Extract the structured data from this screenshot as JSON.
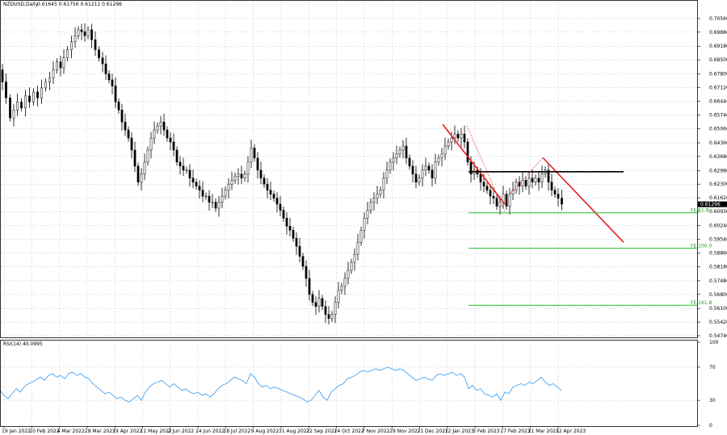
{
  "header": {
    "symbol_text": "NZDUSD,Daily",
    "ohlc_text": "0.61645 0.61756 0.61211 0.61296"
  },
  "chart_data": [
    {
      "type": "candlestick",
      "price_scale": {
        "min": 0.5474,
        "max": 0.7092,
        "ticks": [
          0.7056,
          0.6988,
          0.6918,
          0.685,
          0.678,
          0.6712,
          0.6644,
          0.6574,
          0.6506,
          0.6436,
          0.6368,
          0.6298,
          0.623,
          0.6162,
          0.6093,
          0.6024,
          0.5954,
          0.5886,
          0.5818,
          0.5748,
          0.568,
          0.561,
          0.5542,
          0.5474
        ],
        "tick_labels": [
          "0.70560",
          "0.69880",
          "0.69180",
          "0.68500",
          "0.67800",
          "0.67120",
          "0.66440",
          "0.65740",
          "0.65060",
          "0.64360",
          "0.63680",
          "0.62980",
          "0.62300",
          "0.61620",
          "0.60930",
          "0.60240",
          "0.59540",
          "0.58860",
          "0.58180",
          "0.57480",
          "0.56800",
          "0.56100",
          "0.55420",
          "0.54740"
        ]
      },
      "current_price": {
        "value": 0.61296,
        "label": "0.61296"
      },
      "date_labels": [
        "19 Jan 2022",
        "10 Feb 2022",
        "4 Mar 2022",
        "28 Mar 2022",
        "19 Apr 2022",
        "11 May 2022",
        "2 Jun 2022",
        "24 Jun 2022",
        "18 Jul 2022",
        "9 Aug 2022",
        "31 Aug 2022",
        "22 Sep 2022",
        "14 Oct 2022",
        "7 Nov 2022",
        "29 Nov 2022",
        "21 Dec 2022",
        "12 Jan 2023",
        "3 Feb 2023",
        "27 Feb 2023",
        "21 Mar 2023",
        "12 Apr 2023"
      ],
      "price_path": [
        [
          0,
          0.68
        ],
        [
          4,
          0.674
        ],
        [
          9,
          0.666
        ],
        [
          14,
          0.656
        ],
        [
          18,
          0.66
        ],
        [
          23,
          0.664
        ],
        [
          28,
          0.661
        ],
        [
          33,
          0.667
        ],
        [
          38,
          0.664
        ],
        [
          43,
          0.669
        ],
        [
          48,
          0.666
        ],
        [
          53,
          0.671
        ],
        [
          58,
          0.674
        ],
        [
          63,
          0.676
        ],
        [
          67,
          0.68
        ],
        [
          72,
          0.684
        ],
        [
          76,
          0.681
        ],
        [
          80,
          0.686
        ],
        [
          85,
          0.69
        ],
        [
          90,
          0.694
        ],
        [
          94,
          0.697
        ],
        [
          98,
          0.7
        ],
        [
          102,
          0.699
        ],
        [
          106,
          0.697
        ],
        [
          110,
          0.7
        ],
        [
          115,
          0.695
        ],
        [
          119,
          0.69
        ],
        [
          124,
          0.686
        ],
        [
          128,
          0.683
        ],
        [
          132,
          0.678
        ],
        [
          136,
          0.675
        ],
        [
          140,
          0.672
        ],
        [
          144,
          0.664
        ],
        [
          148,
          0.66
        ],
        [
          152,
          0.654
        ],
        [
          156,
          0.65
        ],
        [
          160,
          0.646
        ],
        [
          164,
          0.64
        ],
        [
          168,
          0.632
        ],
        [
          172,
          0.624
        ],
        [
          176,
          0.628
        ],
        [
          180,
          0.634
        ],
        [
          184,
          0.64
        ],
        [
          188,
          0.646
        ],
        [
          192,
          0.65
        ],
        [
          196,
          0.652
        ],
        [
          200,
          0.654
        ],
        [
          204,
          0.65
        ],
        [
          208,
          0.646
        ],
        [
          212,
          0.644
        ],
        [
          216,
          0.64
        ],
        [
          220,
          0.634
        ],
        [
          224,
          0.632
        ],
        [
          228,
          0.63
        ],
        [
          232,
          0.63
        ],
        [
          236,
          0.626
        ],
        [
          240,
          0.624
        ],
        [
          244,
          0.622
        ],
        [
          248,
          0.62
        ],
        [
          252,
          0.617
        ],
        [
          256,
          0.617
        ],
        [
          260,
          0.614
        ],
        [
          264,
          0.614
        ],
        [
          268,
          0.611
        ],
        [
          272,
          0.614
        ],
        [
          276,
          0.617
        ],
        [
          280,
          0.62
        ],
        [
          284,
          0.623
        ],
        [
          288,
          0.625
        ],
        [
          292,
          0.627
        ],
        [
          296,
          0.628
        ],
        [
          300,
          0.626
        ],
        [
          304,
          0.628
        ],
        [
          308,
          0.634
        ],
        [
          312,
          0.641
        ],
        [
          316,
          0.636
        ],
        [
          320,
          0.63
        ],
        [
          324,
          0.626
        ],
        [
          328,
          0.623
        ],
        [
          332,
          0.62
        ],
        [
          336,
          0.618
        ],
        [
          340,
          0.616
        ],
        [
          344,
          0.613
        ],
        [
          348,
          0.61
        ],
        [
          352,
          0.606
        ],
        [
          356,
          0.602
        ],
        [
          360,
          0.6
        ],
        [
          364,
          0.596
        ],
        [
          368,
          0.592
        ],
        [
          372,
          0.587
        ],
        [
          376,
          0.582
        ],
        [
          380,
          0.576
        ],
        [
          384,
          0.568
        ],
        [
          388,
          0.564
        ],
        [
          392,
          0.562
        ],
        [
          396,
          0.566
        ],
        [
          400,
          0.562
        ],
        [
          404,
          0.558
        ],
        [
          408,
          0.556
        ],
        [
          412,
          0.558
        ],
        [
          416,
          0.564
        ],
        [
          420,
          0.57
        ],
        [
          424,
          0.572
        ],
        [
          428,
          0.576
        ],
        [
          432,
          0.58
        ],
        [
          436,
          0.584
        ],
        [
          440,
          0.588
        ],
        [
          444,
          0.594
        ],
        [
          448,
          0.6
        ],
        [
          452,
          0.606
        ],
        [
          456,
          0.61
        ],
        [
          460,
          0.614
        ],
        [
          464,
          0.616
        ],
        [
          468,
          0.618
        ],
        [
          472,
          0.62
        ],
        [
          476,
          0.626
        ],
        [
          480,
          0.63
        ],
        [
          484,
          0.634
        ],
        [
          488,
          0.636
        ],
        [
          492,
          0.638
        ],
        [
          496,
          0.64
        ],
        [
          500,
          0.642
        ],
        [
          504,
          0.636
        ],
        [
          508,
          0.632
        ],
        [
          512,
          0.628
        ],
        [
          516,
          0.624
        ],
        [
          520,
          0.626
        ],
        [
          524,
          0.63
        ],
        [
          528,
          0.632
        ],
        [
          532,
          0.63
        ],
        [
          536,
          0.626
        ],
        [
          540,
          0.634
        ],
        [
          544,
          0.636
        ],
        [
          548,
          0.638
        ],
        [
          552,
          0.642
        ],
        [
          556,
          0.644
        ],
        [
          560,
          0.646
        ],
        [
          564,
          0.648
        ],
        [
          568,
          0.646
        ],
        [
          572,
          0.648
        ],
        [
          576,
          0.644
        ],
        [
          580,
          0.634
        ],
        [
          584,
          0.628
        ],
        [
          588,
          0.63
        ],
        [
          592,
          0.628
        ],
        [
          596,
          0.624
        ],
        [
          600,
          0.622
        ],
        [
          604,
          0.62
        ],
        [
          608,
          0.617
        ],
        [
          612,
          0.616
        ],
        [
          616,
          0.612
        ],
        [
          620,
          0.614
        ],
        [
          624,
          0.618
        ],
        [
          628,
          0.612
        ],
        [
          632,
          0.618
        ],
        [
          636,
          0.62
        ],
        [
          640,
          0.624
        ],
        [
          644,
          0.622
        ],
        [
          648,
          0.625
        ],
        [
          652,
          0.622
        ],
        [
          656,
          0.626
        ],
        [
          660,
          0.624
        ],
        [
          664,
          0.626
        ],
        [
          668,
          0.624
        ],
        [
          672,
          0.628
        ],
        [
          676,
          0.63
        ],
        [
          680,
          0.624
        ],
        [
          684,
          0.62
        ],
        [
          688,
          0.618
        ],
        [
          692,
          0.616
        ],
        [
          697,
          0.613
        ]
      ],
      "overlay_lines": [
        {
          "name": "red-channel-upper-line",
          "color": "#e52020",
          "points": [
            [
              548,
              0.6528
            ],
            [
              625,
              0.613
            ]
          ]
        },
        {
          "name": "red-trend-line",
          "color": "#e52020",
          "points": [
            [
              672,
              0.6362
            ],
            [
              772,
              0.594
            ]
          ]
        },
        {
          "name": "black-horizontal-line",
          "color": "#000000",
          "points": [
            [
              580,
              0.6292
            ],
            [
              772,
              0.6292
            ]
          ]
        },
        {
          "name": "red-dotted-line-1",
          "color": "#e52020",
          "dotted": true,
          "points": [
            [
              578,
              0.652
            ],
            [
              625,
              0.609
            ]
          ]
        },
        {
          "name": "red-dotted-line-2",
          "color": "#e52020",
          "dotted": true,
          "points": [
            [
              632,
              0.6185
            ],
            [
              672,
              0.6362
            ]
          ]
        }
      ],
      "fib_levels": [
        {
          "label": "FE 61.8",
          "value": 0.6087,
          "color": "#22c02a"
        },
        {
          "label": "FE 100.0",
          "value": 0.591,
          "color": "#22c02a"
        },
        {
          "label": "FE 161.8",
          "value": 0.5626,
          "color": "#22c02a"
        }
      ]
    },
    {
      "type": "line",
      "title": "RSI(14) 40.0995",
      "ylim": [
        0,
        100
      ],
      "ticks": [
        100,
        70,
        30,
        0
      ],
      "color": "#3399ee",
      "series": [
        [
          0,
          42
        ],
        [
          5,
          36
        ],
        [
          10,
          32
        ],
        [
          15,
          38
        ],
        [
          20,
          44
        ],
        [
          25,
          40
        ],
        [
          30,
          46
        ],
        [
          35,
          50
        ],
        [
          40,
          52
        ],
        [
          45,
          55
        ],
        [
          50,
          58
        ],
        [
          55,
          54
        ],
        [
          60,
          60
        ],
        [
          65,
          62
        ],
        [
          70,
          58
        ],
        [
          75,
          60
        ],
        [
          80,
          56
        ],
        [
          85,
          62
        ],
        [
          90,
          64
        ],
        [
          95,
          60
        ],
        [
          100,
          62
        ],
        [
          105,
          58
        ],
        [
          110,
          56
        ],
        [
          115,
          50
        ],
        [
          120,
          46
        ],
        [
          125,
          42
        ],
        [
          130,
          38
        ],
        [
          135,
          40
        ],
        [
          140,
          36
        ],
        [
          145,
          32
        ],
        [
          150,
          34
        ],
        [
          155,
          30
        ],
        [
          160,
          28
        ],
        [
          165,
          32
        ],
        [
          170,
          36
        ],
        [
          175,
          30
        ],
        [
          180,
          40
        ],
        [
          185,
          46
        ],
        [
          190,
          50
        ],
        [
          195,
          52
        ],
        [
          200,
          54
        ],
        [
          205,
          50
        ],
        [
          210,
          46
        ],
        [
          215,
          50
        ],
        [
          220,
          46
        ],
        [
          225,
          42
        ],
        [
          230,
          44
        ],
        [
          235,
          40
        ],
        [
          240,
          38
        ],
        [
          245,
          40
        ],
        [
          250,
          36
        ],
        [
          255,
          38
        ],
        [
          260,
          34
        ],
        [
          265,
          38
        ],
        [
          270,
          44
        ],
        [
          275,
          48
        ],
        [
          280,
          50
        ],
        [
          285,
          54
        ],
        [
          290,
          58
        ],
        [
          295,
          56
        ],
        [
          300,
          54
        ],
        [
          305,
          50
        ],
        [
          310,
          62
        ],
        [
          315,
          58
        ],
        [
          320,
          50
        ],
        [
          325,
          46
        ],
        [
          330,
          48
        ],
        [
          335,
          44
        ],
        [
          340,
          46
        ],
        [
          345,
          44
        ],
        [
          350,
          42
        ],
        [
          355,
          40
        ],
        [
          360,
          38
        ],
        [
          365,
          36
        ],
        [
          370,
          34
        ],
        [
          375,
          32
        ],
        [
          380,
          28
        ],
        [
          385,
          30
        ],
        [
          390,
          36
        ],
        [
          395,
          42
        ],
        [
          400,
          34
        ],
        [
          405,
          30
        ],
        [
          410,
          40
        ],
        [
          415,
          44
        ],
        [
          420,
          48
        ],
        [
          425,
          50
        ],
        [
          430,
          56
        ],
        [
          435,
          58
        ],
        [
          440,
          60
        ],
        [
          445,
          64
        ],
        [
          450,
          66
        ],
        [
          455,
          64
        ],
        [
          460,
          66
        ],
        [
          465,
          68
        ],
        [
          470,
          66
        ],
        [
          475,
          68
        ],
        [
          480,
          70
        ],
        [
          485,
          68
        ],
        [
          490,
          66
        ],
        [
          495,
          68
        ],
        [
          500,
          66
        ],
        [
          505,
          62
        ],
        [
          510,
          58
        ],
        [
          515,
          54
        ],
        [
          520,
          56
        ],
        [
          525,
          58
        ],
        [
          530,
          56
        ],
        [
          535,
          54
        ],
        [
          540,
          60
        ],
        [
          545,
          62
        ],
        [
          550,
          60
        ],
        [
          555,
          62
        ],
        [
          560,
          64
        ],
        [
          565,
          60
        ],
        [
          570,
          62
        ],
        [
          575,
          58
        ],
        [
          580,
          44
        ],
        [
          585,
          48
        ],
        [
          590,
          42
        ],
        [
          595,
          44
        ],
        [
          600,
          38
        ],
        [
          605,
          36
        ],
        [
          610,
          34
        ],
        [
          615,
          38
        ],
        [
          620,
          30
        ],
        [
          625,
          40
        ],
        [
          630,
          38
        ],
        [
          635,
          46
        ],
        [
          640,
          48
        ],
        [
          645,
          50
        ],
        [
          650,
          48
        ],
        [
          655,
          52
        ],
        [
          660,
          50
        ],
        [
          665,
          54
        ],
        [
          670,
          58
        ],
        [
          675,
          52
        ],
        [
          680,
          48
        ],
        [
          685,
          50
        ],
        [
          690,
          46
        ],
        [
          695,
          42
        ]
      ]
    }
  ]
}
